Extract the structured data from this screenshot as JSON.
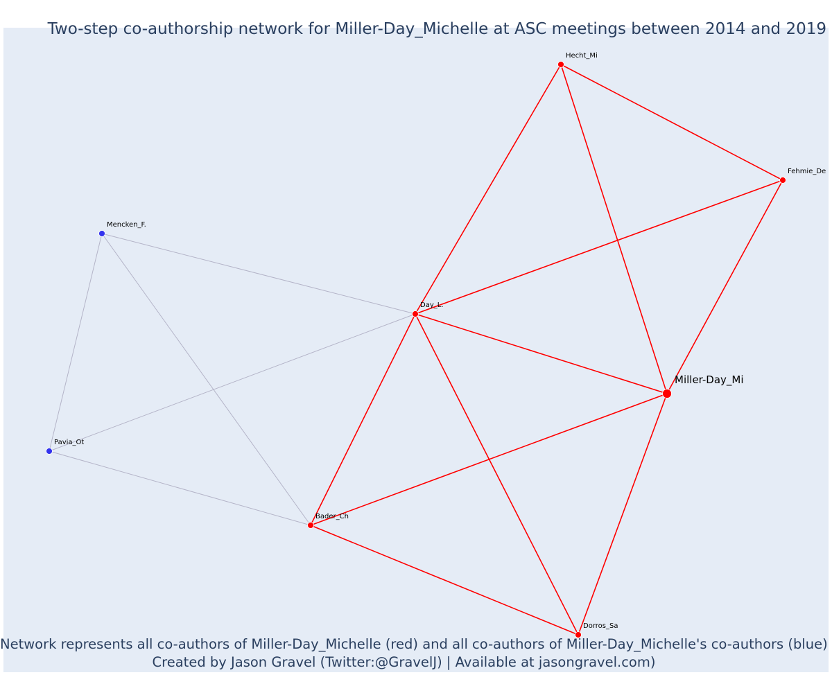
{
  "title": "Two-step co-authorship network for Miller-Day_Michelle at ASC meetings between 2014 and 2019",
  "caption": {
    "line1": "Network represents all co-authors of Miller-Day_Michelle (red) and all co-authors of Miller-Day_Michelle's co-authors (blue)",
    "line2": "Created by Jason Gravel (Twitter:@GravelJ) | Available at jasongravel.com)"
  },
  "colors": {
    "background": "#e5ecf6",
    "coauthor": "#ff0000",
    "second_step": "#3333ee",
    "second_step_edge": "#b4b4c8",
    "text": "#2a3f5f"
  },
  "chart_data": {
    "type": "network",
    "focal": "Miller-Day_Mi",
    "nodes": [
      {
        "id": "Hecht_Mi",
        "label": "Hecht_Mi",
        "group": "coauthor"
      },
      {
        "id": "Fehmie_De",
        "label": "Fehmie_De",
        "group": "coauthor"
      },
      {
        "id": "Mencken_F.",
        "label": "Mencken_F.",
        "group": "second_step"
      },
      {
        "id": "Day_L.",
        "label": "Day_L.",
        "group": "coauthor"
      },
      {
        "id": "Miller-Day_Mi",
        "label": "Miller-Day_Mi",
        "group": "focal"
      },
      {
        "id": "Pavia_Ot",
        "label": "Pavia_Ot",
        "group": "second_step"
      },
      {
        "id": "Bader_Ch",
        "label": "Bader_Ch",
        "group": "coauthor"
      },
      {
        "id": "Dorros_Sa",
        "label": "Dorros_Sa",
        "group": "coauthor"
      }
    ],
    "edges": [
      [
        "Hecht_Mi",
        "Day_L.",
        "coauthor"
      ],
      [
        "Hecht_Mi",
        "Fehmie_De",
        "coauthor"
      ],
      [
        "Hecht_Mi",
        "Miller-Day_Mi",
        "coauthor"
      ],
      [
        "Fehmie_De",
        "Day_L.",
        "coauthor"
      ],
      [
        "Fehmie_De",
        "Miller-Day_Mi",
        "coauthor"
      ],
      [
        "Day_L.",
        "Miller-Day_Mi",
        "coauthor"
      ],
      [
        "Day_L.",
        "Bader_Ch",
        "coauthor"
      ],
      [
        "Day_L.",
        "Dorros_Sa",
        "coauthor"
      ],
      [
        "Bader_Ch",
        "Miller-Day_Mi",
        "coauthor"
      ],
      [
        "Bader_Ch",
        "Dorros_Sa",
        "coauthor"
      ],
      [
        "Dorros_Sa",
        "Miller-Day_Mi",
        "coauthor"
      ],
      [
        "Mencken_F.",
        "Day_L.",
        "second_step"
      ],
      [
        "Mencken_F.",
        "Pavia_Ot",
        "second_step"
      ],
      [
        "Mencken_F.",
        "Bader_Ch",
        "second_step"
      ],
      [
        "Pavia_Ot",
        "Day_L.",
        "second_step"
      ],
      [
        "Pavia_Ot",
        "Bader_Ch",
        "second_step"
      ]
    ]
  }
}
